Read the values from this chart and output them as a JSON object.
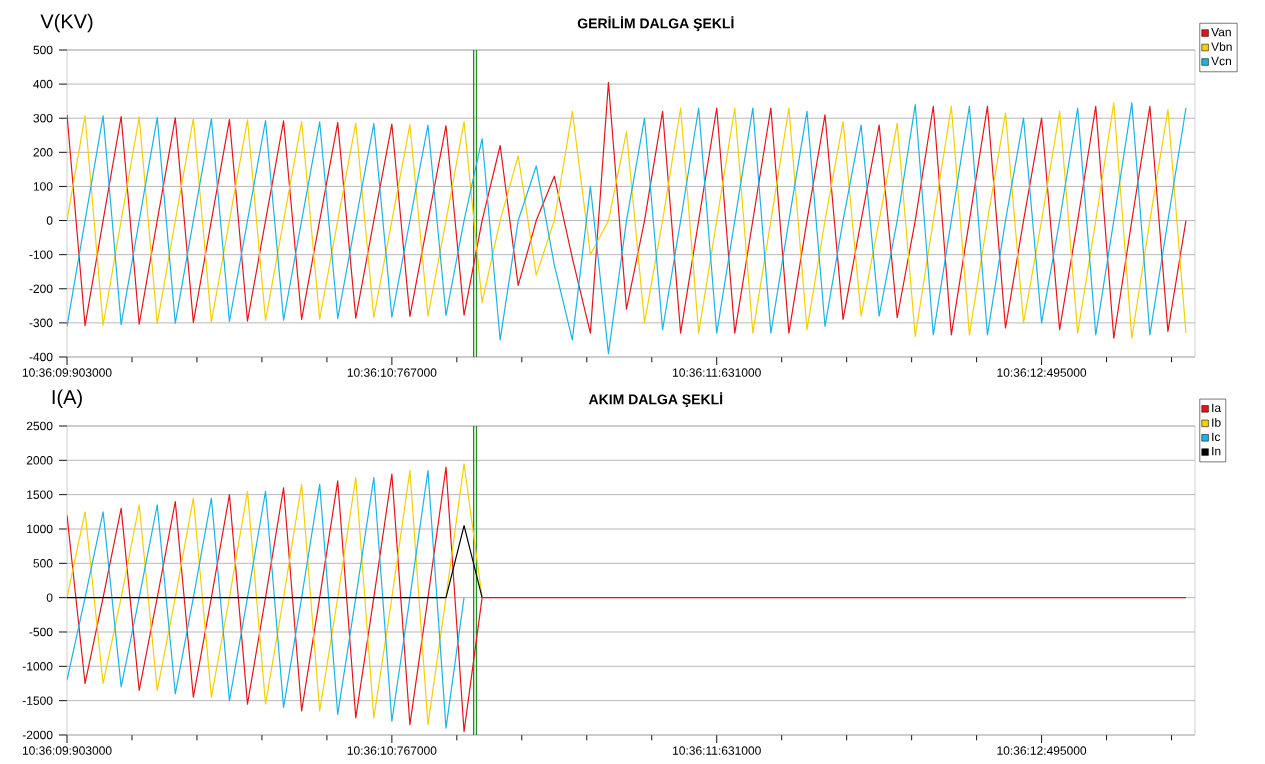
{
  "chart_data": [
    {
      "type": "line",
      "title": "GERİLİM DALGA ŞEKLİ",
      "ylabel": "V(KV)",
      "grid": "y",
      "legend": "top right",
      "categories": [
        "10:36:09:903000",
        null,
        null,
        null,
        null,
        null,
        null,
        null,
        null,
        null,
        null,
        null,
        null,
        null,
        null,
        null,
        null,
        null,
        "10:36:10:767000",
        null,
        null,
        null,
        null,
        null,
        null,
        null,
        null,
        null,
        null,
        null,
        null,
        null,
        null,
        null,
        null,
        null,
        "10:36:11:631000",
        null,
        null,
        null,
        null,
        null,
        null,
        null,
        null,
        null,
        null,
        null,
        null,
        null,
        null,
        null,
        null,
        null,
        "10:36:12:495000",
        null,
        null,
        null,
        null,
        null,
        null,
        null,
        null
      ],
      "ylim": [
        -400,
        500
      ],
      "yticks": [
        -400,
        -300,
        -200,
        -100,
        0,
        100,
        200,
        300,
        400,
        500
      ],
      "series": [
        {
          "name": "Van",
          "color": "#e8141c",
          "values": [
            310,
            -308,
            0,
            305,
            -304,
            0,
            301,
            -299,
            0,
            296,
            -295,
            0,
            292,
            -290,
            0,
            287,
            -286,
            0,
            283,
            -281,
            0,
            278,
            -277,
            0,
            220,
            -190,
            0,
            130,
            -110,
            -330,
            405,
            -260,
            0,
            320,
            -330,
            0,
            330,
            -330,
            0,
            330,
            -330,
            0,
            310,
            -290,
            0,
            280,
            -285,
            0,
            335,
            -335,
            0,
            335,
            -315,
            0,
            300,
            -320,
            0,
            335,
            -345,
            0,
            335,
            -325,
            0
          ]
        },
        {
          "name": "Vbn",
          "color": "#f5d000",
          "values": [
            0,
            308,
            -307,
            0,
            304,
            -302,
            0,
            299,
            -298,
            0,
            295,
            -293,
            0,
            290,
            -289,
            0,
            286,
            -284,
            0,
            281,
            -280,
            0,
            290,
            -240,
            0,
            190,
            -160,
            0,
            320,
            -100,
            0,
            260,
            -300,
            0,
            330,
            -330,
            0,
            330,
            -330,
            0,
            330,
            -320,
            0,
            290,
            -280,
            0,
            285,
            -340,
            0,
            335,
            -335,
            0,
            315,
            -300,
            0,
            320,
            -330,
            0,
            345,
            -345,
            0,
            325,
            -330
          ]
        },
        {
          "name": "Vcn",
          "color": "#1ab4e8",
          "values": [
            -310,
            0,
            307,
            -305,
            0,
            302,
            -301,
            0,
            298,
            -296,
            0,
            293,
            -292,
            0,
            289,
            -287,
            0,
            284,
            -283,
            0,
            280,
            -278,
            0,
            240,
            -350,
            0,
            160,
            -130,
            -350,
            100,
            -390,
            0,
            300,
            -320,
            0,
            330,
            -330,
            0,
            330,
            -330,
            0,
            320,
            -310,
            0,
            280,
            -280,
            0,
            340,
            -335,
            0,
            335,
            -335,
            0,
            300,
            -300,
            0,
            330,
            -335,
            0,
            345,
            -335,
            0,
            330
          ]
        }
      ]
    },
    {
      "type": "line",
      "title": "AKIM DALGA ŞEKLİ",
      "ylabel": "I(A)",
      "grid": "y",
      "legend": "top right",
      "categories": [
        "10:36:09:903000",
        null,
        null,
        null,
        null,
        null,
        null,
        null,
        null,
        null,
        null,
        null,
        null,
        null,
        null,
        null,
        null,
        null,
        "10:36:10:767000",
        null,
        null,
        null,
        null,
        null,
        null,
        null,
        null,
        null,
        null,
        null,
        null,
        null,
        null,
        null,
        null,
        null,
        "10:36:11:631000",
        null,
        null,
        null,
        null,
        null,
        null,
        null,
        null,
        null,
        null,
        null,
        null,
        null,
        null,
        null,
        null,
        null,
        "10:36:12:495000",
        null,
        null,
        null,
        null,
        null,
        null,
        null,
        null
      ],
      "ylim": [
        -2000,
        2500
      ],
      "yticks": [
        -2000,
        -1500,
        -1000,
        -500,
        0,
        500,
        1000,
        1500,
        2000,
        2500
      ],
      "series": [
        {
          "name": "Ia",
          "color": "#e8141c",
          "values": [
            1200,
            -1250,
            0,
            1300,
            -1350,
            0,
            1400,
            -1450,
            0,
            1500,
            -1550,
            0,
            1600,
            -1650,
            0,
            1700,
            -1750,
            0,
            1800,
            -1850,
            0,
            1900,
            -1950,
            0,
            0,
            0,
            0,
            0,
            0,
            0,
            0,
            0,
            0,
            0,
            0,
            0,
            0,
            0,
            0,
            0,
            0,
            0,
            0,
            0,
            0,
            0,
            0,
            0,
            0,
            0,
            0,
            0,
            0,
            0,
            0,
            0,
            0,
            0,
            0,
            0,
            0,
            0,
            0
          ]
        },
        {
          "name": "Ib",
          "color": "#f5d000",
          "values": [
            0,
            1250,
            -1250,
            0,
            1350,
            -1350,
            0,
            1450,
            -1450,
            0,
            1550,
            -1550,
            0,
            1650,
            -1650,
            0,
            1750,
            -1750,
            0,
            1850,
            -1850,
            0,
            1950,
            0,
            null,
            null,
            null,
            null,
            null,
            null,
            null,
            null,
            null,
            null,
            null,
            null,
            null,
            null,
            null,
            null,
            null,
            null,
            null,
            null,
            null,
            null,
            null,
            null,
            null,
            null,
            null,
            null,
            null,
            null,
            null,
            null,
            null,
            null,
            null,
            null,
            null,
            null,
            null
          ]
        },
        {
          "name": "Ic",
          "color": "#1ab4e8",
          "values": [
            -1200,
            0,
            1250,
            -1300,
            0,
            1350,
            -1400,
            0,
            1450,
            -1500,
            0,
            1550,
            -1600,
            0,
            1650,
            -1700,
            0,
            1750,
            -1800,
            0,
            1850,
            -1900,
            0,
            null,
            null,
            null,
            null,
            null,
            null,
            null,
            null,
            null,
            null,
            null,
            null,
            null,
            null,
            null,
            null,
            null,
            null,
            null,
            null,
            null,
            null,
            null,
            null,
            null,
            null,
            null,
            null,
            null,
            null,
            null,
            null,
            null,
            null,
            null,
            null,
            null,
            null,
            null,
            null
          ]
        },
        {
          "name": "In",
          "color": "#000000",
          "values": [
            0,
            0,
            0,
            0,
            0,
            0,
            0,
            0,
            0,
            0,
            0,
            0,
            0,
            0,
            0,
            0,
            0,
            0,
            0,
            0,
            0,
            0,
            1050,
            0,
            null,
            null,
            null,
            null,
            null,
            null,
            null,
            null,
            null,
            null,
            null,
            null,
            null,
            null,
            null,
            null,
            null,
            null,
            null,
            null,
            null,
            null,
            null,
            null,
            null,
            null,
            null,
            null,
            null,
            null,
            null,
            null,
            null,
            null,
            null,
            null,
            null,
            null,
            null
          ]
        }
      ]
    }
  ]
}
